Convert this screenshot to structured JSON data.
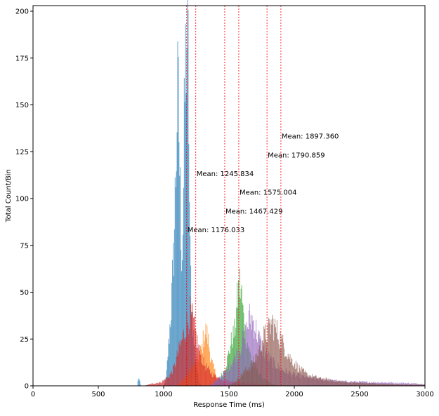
{
  "chart_data": {
    "type": "histogram",
    "title": "",
    "xlabel": "Response Time (ms)",
    "ylabel": "Total Count/Bin",
    "xlim": [
      0,
      3000
    ],
    "ylim": [
      0,
      203
    ],
    "xticks": [
      0,
      500,
      1000,
      1500,
      2000,
      2500,
      3000
    ],
    "yticks": [
      0,
      25,
      50,
      75,
      100,
      125,
      150,
      175,
      200
    ],
    "grid": false,
    "legend": "none",
    "series": [
      {
        "color": "#1f77b4",
        "mean": 1176.033,
        "mean_label": "Mean: 1176.033",
        "label_y": 82,
        "profile": [
          [
            800,
            0
          ],
          [
            805,
            5
          ],
          [
            815,
            3
          ],
          [
            825,
            0
          ],
          [
            1000,
            0
          ],
          [
            1020,
            5
          ],
          [
            1040,
            25
          ],
          [
            1060,
            45
          ],
          [
            1080,
            80
          ],
          [
            1095,
            125
          ],
          [
            1105,
            158
          ],
          [
            1115,
            150
          ],
          [
            1125,
            110
          ],
          [
            1140,
            70
          ],
          [
            1150,
            95
          ],
          [
            1160,
            150
          ],
          [
            1170,
            185
          ],
          [
            1180,
            195
          ],
          [
            1190,
            172
          ],
          [
            1200,
            75
          ],
          [
            1210,
            55
          ],
          [
            1225,
            30
          ],
          [
            1240,
            18
          ],
          [
            1255,
            8
          ],
          [
            1270,
            3
          ],
          [
            1290,
            0
          ]
        ]
      },
      {
        "color": "#ff7f0e",
        "mean": 1245.834,
        "mean_label": "Mean: 1245.834",
        "label_y": 112,
        "profile": [
          [
            1100,
            0
          ],
          [
            1160,
            4
          ],
          [
            1220,
            10
          ],
          [
            1260,
            14
          ],
          [
            1290,
            20
          ],
          [
            1310,
            28
          ],
          [
            1325,
            30
          ],
          [
            1340,
            26
          ],
          [
            1360,
            16
          ],
          [
            1380,
            10
          ],
          [
            1410,
            5
          ],
          [
            1450,
            2
          ],
          [
            1500,
            0
          ]
        ]
      },
      {
        "color": "#2ca02c",
        "mean": 1575.004,
        "mean_label": "Mean: 1575.004",
        "label_y": 102,
        "profile": [
          [
            1380,
            0
          ],
          [
            1420,
            3
          ],
          [
            1460,
            8
          ],
          [
            1490,
            15
          ],
          [
            1520,
            25
          ],
          [
            1545,
            30
          ],
          [
            1565,
            48
          ],
          [
            1580,
            56
          ],
          [
            1595,
            52
          ],
          [
            1610,
            38
          ],
          [
            1630,
            28
          ],
          [
            1660,
            18
          ],
          [
            1700,
            10
          ],
          [
            1760,
            4
          ],
          [
            1830,
            1
          ],
          [
            1900,
            0
          ]
        ]
      },
      {
        "color": "#d62728",
        "mean": 1467.429,
        "mean_label": "Mean: 1467.429",
        "label_y": 92,
        "profile": [
          [
            850,
            0
          ],
          [
            900,
            1
          ],
          [
            980,
            2
          ],
          [
            1040,
            5
          ],
          [
            1080,
            10
          ],
          [
            1110,
            18
          ],
          [
            1140,
            25
          ],
          [
            1170,
            32
          ],
          [
            1200,
            40
          ],
          [
            1220,
            36
          ],
          [
            1240,
            30
          ],
          [
            1270,
            20
          ],
          [
            1310,
            12
          ],
          [
            1360,
            7
          ],
          [
            1430,
            4
          ],
          [
            1550,
            2
          ],
          [
            1700,
            1
          ],
          [
            1900,
            0
          ]
        ]
      },
      {
        "color": "#9467bd",
        "mean": 1790.859,
        "mean_label": "Mean: 1790.859",
        "label_y": 122,
        "profile": [
          [
            1350,
            0
          ],
          [
            1420,
            4
          ],
          [
            1480,
            8
          ],
          [
            1540,
            15
          ],
          [
            1590,
            22
          ],
          [
            1630,
            30
          ],
          [
            1660,
            38
          ],
          [
            1690,
            35
          ],
          [
            1720,
            28
          ],
          [
            1760,
            20
          ],
          [
            1820,
            14
          ],
          [
            1900,
            9
          ],
          [
            2000,
            6
          ],
          [
            2150,
            4
          ],
          [
            2350,
            2.5
          ],
          [
            2600,
            2
          ],
          [
            2850,
            1.5
          ],
          [
            3000,
            1
          ]
        ]
      },
      {
        "color": "#8c564b",
        "mean": 1897.36,
        "mean_label": "Mean: 1897.360",
        "label_y": 132,
        "profile": [
          [
            1500,
            0
          ],
          [
            1560,
            3
          ],
          [
            1620,
            8
          ],
          [
            1680,
            12
          ],
          [
            1720,
            18
          ],
          [
            1760,
            26
          ],
          [
            1800,
            30
          ],
          [
            1830,
            35
          ],
          [
            1850,
            32
          ],
          [
            1880,
            28
          ],
          [
            1920,
            22
          ],
          [
            1970,
            15
          ],
          [
            2030,
            10
          ],
          [
            2100,
            6
          ],
          [
            2200,
            4
          ],
          [
            2400,
            2
          ],
          [
            2700,
            1
          ],
          [
            3000,
            0.5
          ]
        ]
      }
    ]
  }
}
